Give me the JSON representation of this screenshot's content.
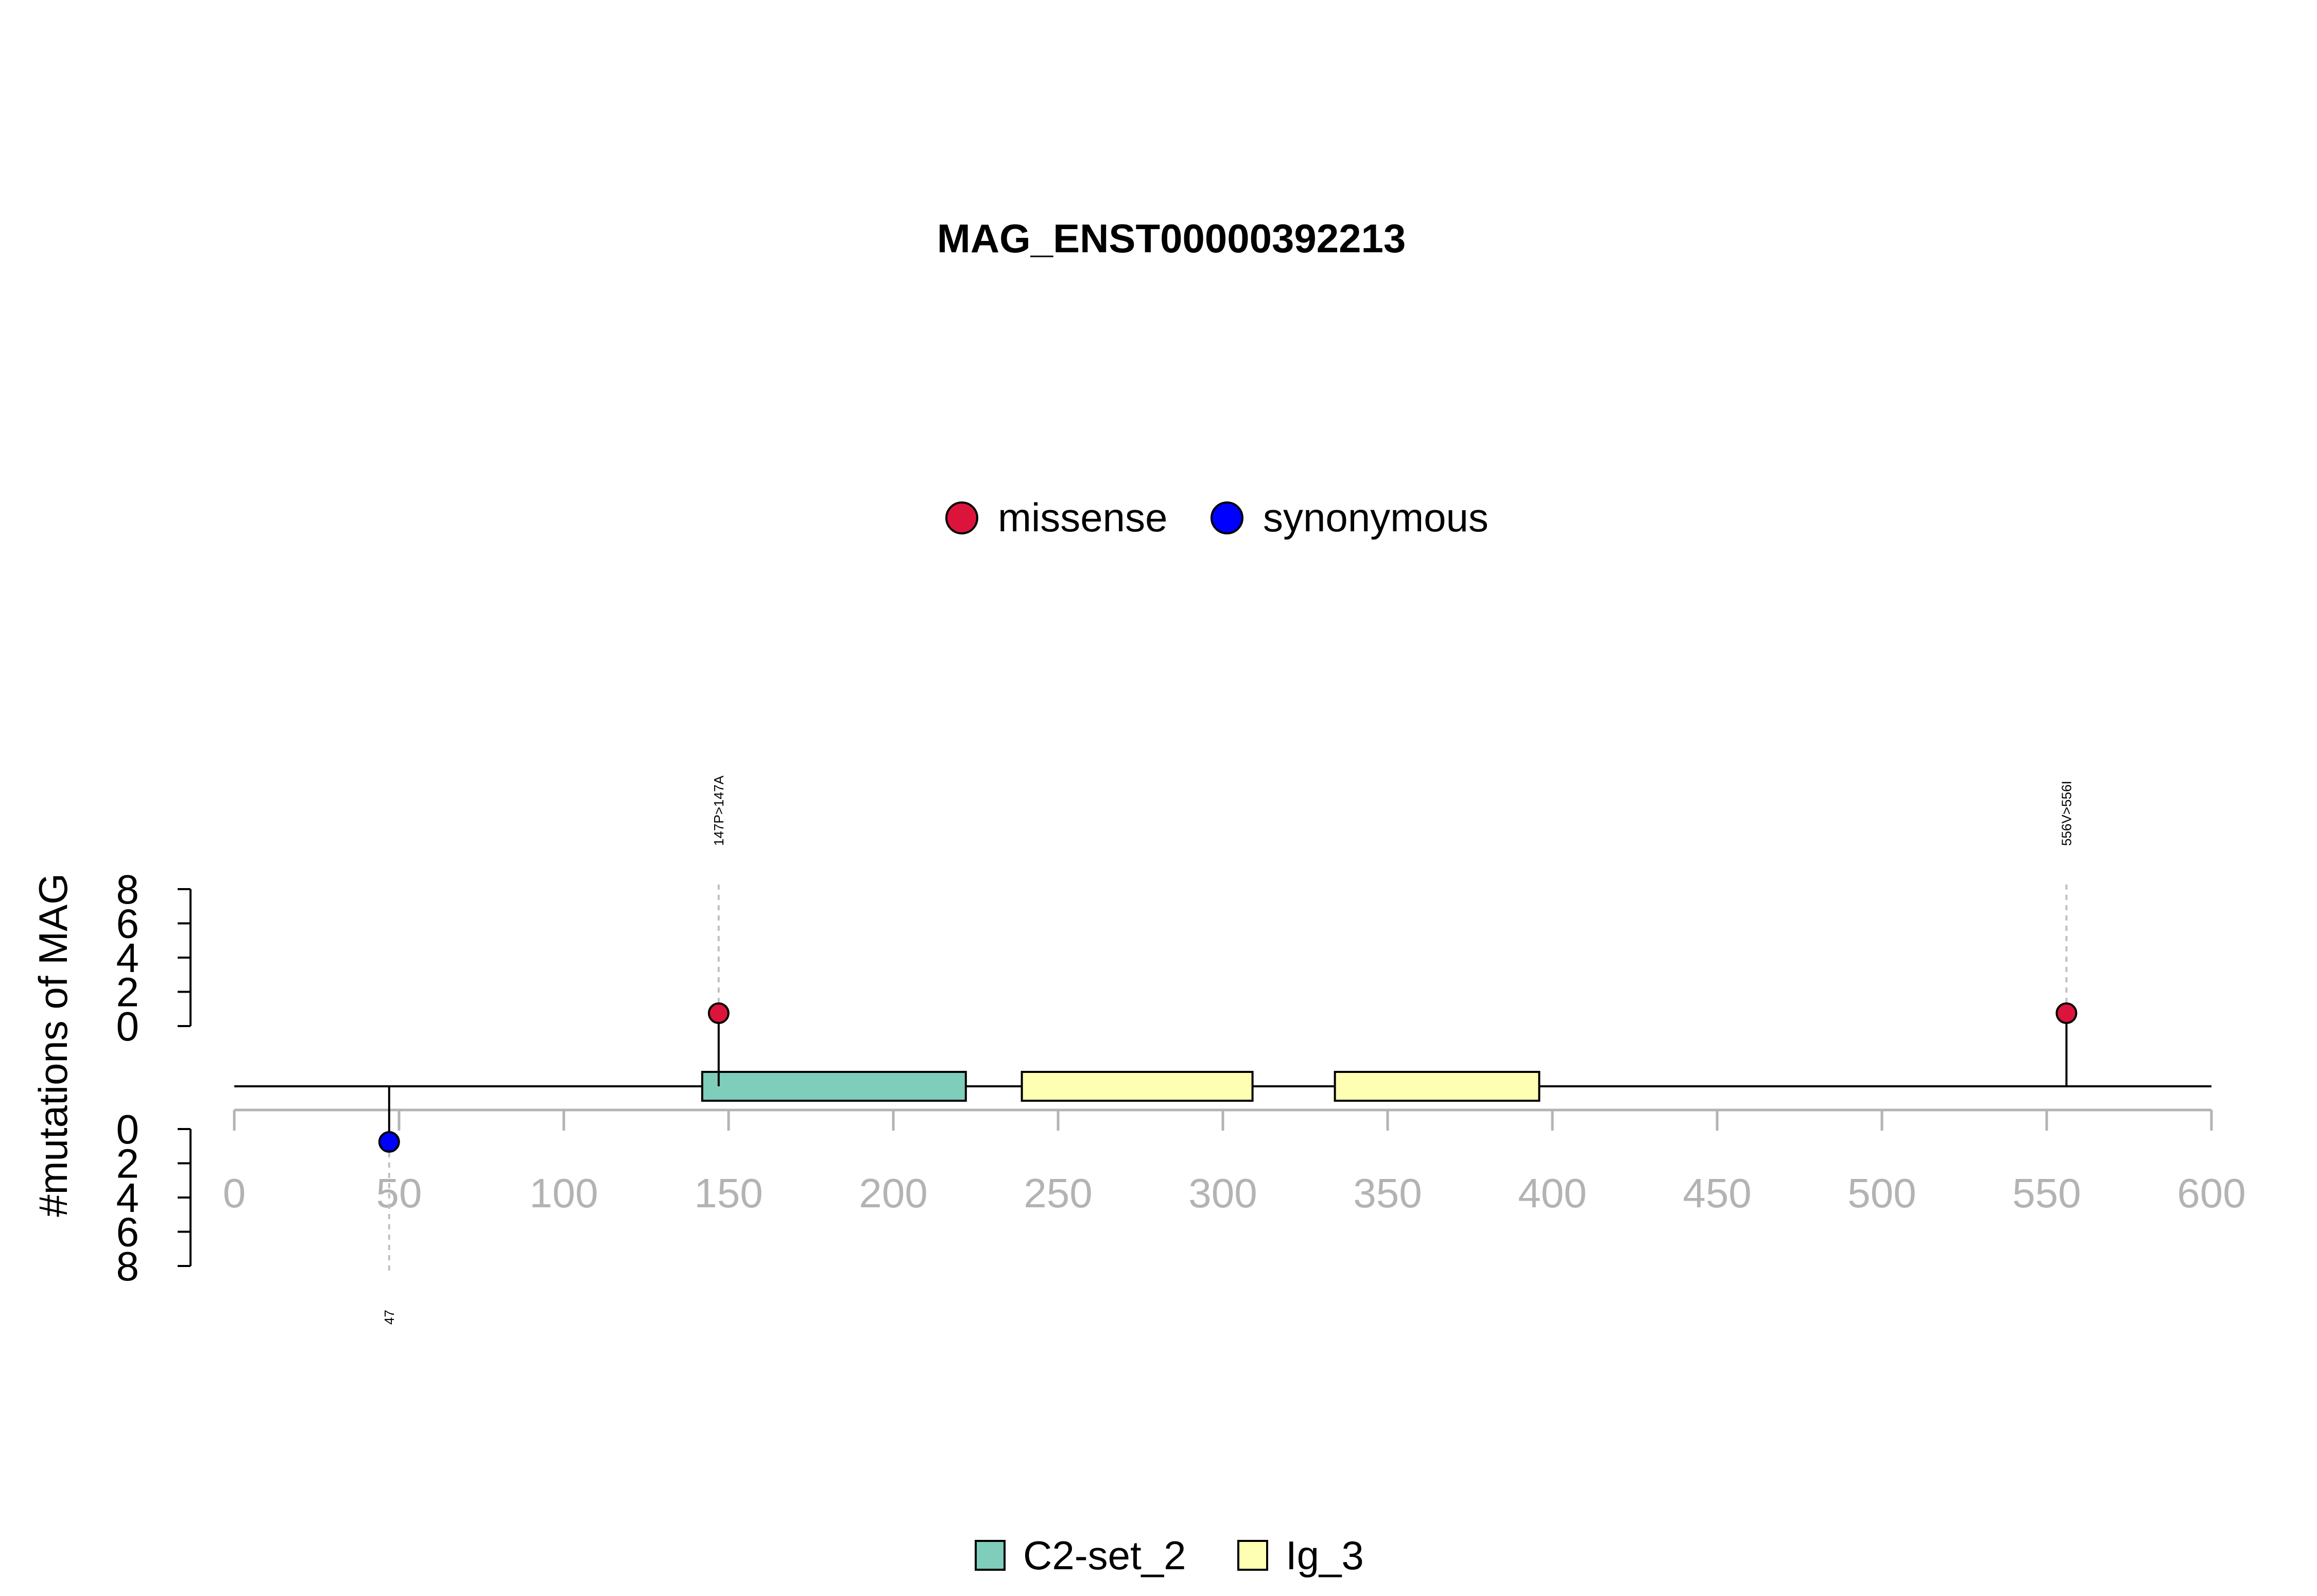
{
  "chart_data": {
    "type": "lollipop",
    "title": "MAG_ENST00000392213",
    "ylabel": "#mutations of MAG",
    "xlim": [
      0,
      600
    ],
    "x_ticks": [
      0,
      50,
      100,
      150,
      200,
      250,
      300,
      350,
      400,
      450,
      500,
      550,
      600
    ],
    "y_ticks": [
      0,
      2,
      4,
      6,
      8
    ],
    "ylim": [
      0,
      8
    ],
    "protein_length": 600,
    "mutation_legend": [
      {
        "name": "missense",
        "color": "#DC143C"
      },
      {
        "name": "synonymous",
        "color": "#0000FF"
      }
    ],
    "domain_legend": [
      {
        "name": "C2-set_2",
        "color": "#7FCDBB"
      },
      {
        "name": "Ig_3",
        "color": "#FFFFB3"
      }
    ],
    "domains": [
      {
        "name": "C2-set_2",
        "start": 142,
        "end": 222,
        "color": "#7FCDBB"
      },
      {
        "name": "Ig_3",
        "start": 239,
        "end": 309,
        "color": "#FFFFB3"
      },
      {
        "name": "Ig_3",
        "start": 334,
        "end": 396,
        "color": "#FFFFB3"
      }
    ],
    "mutations": [
      {
        "position": 147,
        "label": "147P>147A",
        "type": "missense",
        "count": 1,
        "side": "top",
        "color": "#DC143C"
      },
      {
        "position": 556,
        "label": "556V>556I",
        "type": "missense",
        "count": 1,
        "side": "top",
        "color": "#DC143C"
      },
      {
        "position": 47,
        "label": "47",
        "type": "synonymous",
        "count": 1,
        "side": "bottom",
        "color": "#0000FF"
      }
    ]
  }
}
